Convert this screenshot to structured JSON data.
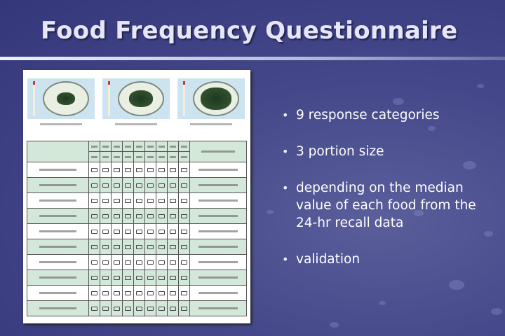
{
  "slide": {
    "title": "Food Frequency Questionnaire",
    "bullets": [
      "9 response categories",
      "3 portion size",
      "depending on the median value of each food from the 24-hr recall data",
      "validation"
    ],
    "colors": {
      "background": "#3e4282",
      "title": "#e6e6f8",
      "table_alt_row": "#d4e8da"
    }
  }
}
